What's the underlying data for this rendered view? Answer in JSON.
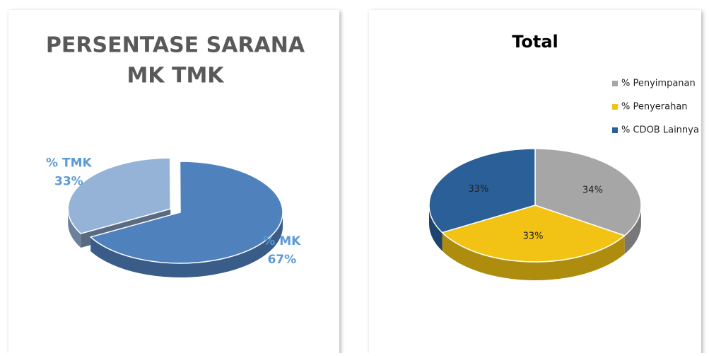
{
  "chart_data": [
    {
      "type": "pie",
      "title": [
        "PERSENTASE SARANA",
        "MK TMK"
      ],
      "categories": [
        "% TMK",
        "% MK"
      ],
      "values": [
        33,
        67
      ],
      "value_labels": [
        "33%",
        "67%"
      ],
      "colors": [
        "#95b3d7",
        "#4f81bd"
      ],
      "legend": "none"
    },
    {
      "type": "pie",
      "title": "Total",
      "categories": [
        "% Penyimpanan",
        "% Penyerahan",
        "% CDOB Lainnya"
      ],
      "values": [
        34,
        33,
        33
      ],
      "value_labels": [
        "34%",
        "33%",
        "33%"
      ],
      "colors": [
        "#a6a6a6",
        "#f2c314",
        "#2a5f97"
      ],
      "legend": "right"
    }
  ]
}
